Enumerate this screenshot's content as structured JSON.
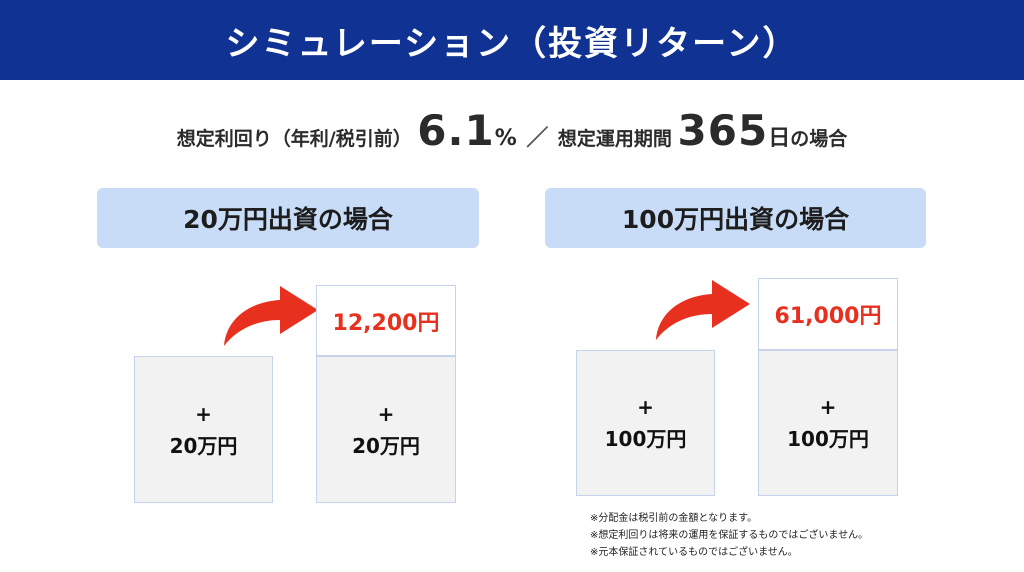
{
  "header": {
    "title": "シミュレーション（投資リターン）"
  },
  "assumption": {
    "rate_label": "想定利回り（年利/税引前）",
    "rate_value": "6.1",
    "rate_unit": "%",
    "separator": "／",
    "period_label": "想定運用期間",
    "period_value": "365",
    "period_unit": "日",
    "suffix": "の場合"
  },
  "cases": [
    {
      "title": "20万円出資の場合",
      "plus": "+",
      "principal": "20万円",
      "return_amount": "12,200円"
    },
    {
      "title": "100万円出資の場合",
      "plus": "+",
      "principal": "100万円",
      "return_amount": "61,000円"
    }
  ],
  "notes": [
    "※分配金は税引前の金額となります。",
    "※想定利回りは将来の運用を保証するものではございません。",
    "※元本保証されているものではございません。"
  ],
  "colors": {
    "header_bg": "#0f3293",
    "pill_bg": "#c8dcf7",
    "return_text": "#e8301f",
    "arrow": "#e8301f"
  }
}
